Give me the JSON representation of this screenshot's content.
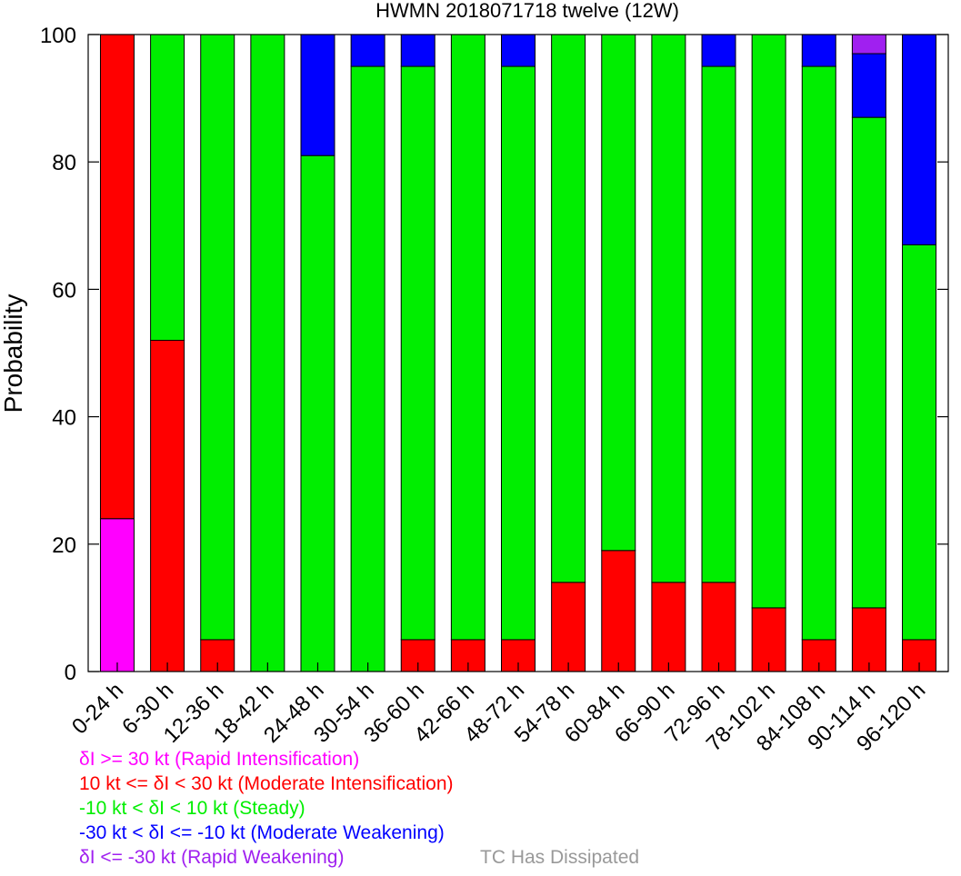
{
  "chart_data": {
    "type": "bar",
    "stacked": true,
    "title": "HWMN 2018071718 twelve (12W)",
    "xlabel": "",
    "ylabel": "Probability",
    "ylim": [
      0,
      100
    ],
    "yticks": [
      0,
      20,
      40,
      60,
      80,
      100
    ],
    "categories": [
      "0-24 h",
      "6-30 h",
      "12-36 h",
      "18-42 h",
      "24-48 h",
      "30-54 h",
      "36-60 h",
      "42-66 h",
      "48-72 h",
      "54-78 h",
      "60-84 h",
      "66-90 h",
      "72-96 h",
      "78-102 h",
      "84-108 h",
      "90-114 h",
      "96-120 h"
    ],
    "series": [
      {
        "key": "ri",
        "color": "#ff00ff",
        "values": [
          24,
          0,
          0,
          0,
          0,
          0,
          0,
          0,
          0,
          0,
          0,
          0,
          0,
          0,
          0,
          0,
          0
        ]
      },
      {
        "key": "mi",
        "color": "#ff0000",
        "values": [
          76,
          52,
          5,
          0,
          0,
          0,
          5,
          5,
          5,
          14,
          19,
          14,
          14,
          10,
          5,
          10,
          5
        ]
      },
      {
        "key": "steady",
        "color": "#00ee00",
        "values": [
          0,
          48,
          95,
          100,
          81,
          95,
          90,
          95,
          90,
          86,
          81,
          86,
          81,
          90,
          90,
          77,
          62
        ]
      },
      {
        "key": "mw",
        "color": "#0000ff",
        "values": [
          0,
          0,
          0,
          0,
          19,
          5,
          5,
          0,
          5,
          0,
          0,
          0,
          5,
          0,
          5,
          10,
          33
        ]
      },
      {
        "key": "rw",
        "color": "#a020f0",
        "values": [
          0,
          0,
          0,
          0,
          0,
          0,
          0,
          0,
          0,
          0,
          0,
          0,
          0,
          0,
          0,
          3,
          0
        ]
      }
    ],
    "grid": false,
    "legend": {
      "placement": "bottom-left",
      "entries": [
        {
          "text": "δI >= 30 kt (Rapid Intensification)",
          "color": "#ff00ff"
        },
        {
          "text": "10 kt <= δI < 30 kt (Moderate Intensification)",
          "color": "#ff0000"
        },
        {
          "text": "-10 kt < δI < 10 kt (Steady)",
          "color": "#00ee00"
        },
        {
          "text": "-30 kt < δI <= -10 kt (Moderate Weakening)",
          "color": "#0000ff"
        },
        {
          "text": "δI <= -30 kt (Rapid Weakening)",
          "color": "#a020f0"
        }
      ],
      "dissipated": {
        "text": "TC Has Dissipated",
        "color": "#999999"
      }
    }
  }
}
